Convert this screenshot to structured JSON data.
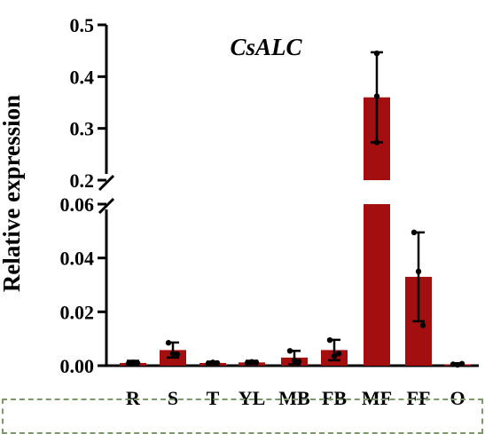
{
  "chart_data": {
    "type": "bar",
    "title": "CsALC",
    "ylabel": "Relative expression",
    "xlabel": "",
    "categories": [
      "R",
      "S",
      "T",
      "YL",
      "MB",
      "FB",
      "MF",
      "FF",
      "O"
    ],
    "values": [
      0.001,
      0.0058,
      0.001,
      0.0012,
      0.003,
      0.0058,
      0.36,
      0.033,
      0.0005
    ],
    "error": [
      0.0008,
      0.0028,
      0.0005,
      0.0006,
      0.0025,
      0.0038,
      0.087,
      0.0165,
      0.0004
    ],
    "points": [
      [
        0.0008,
        0.0012,
        0.001
      ],
      [
        0.0085,
        0.0045,
        0.0042
      ],
      [
        0.0008,
        0.0012,
        0.001
      ],
      [
        0.001,
        0.0014,
        0.0012
      ],
      [
        0.0055,
        0.002,
        0.0015
      ],
      [
        0.0095,
        0.0035,
        0.0045
      ],
      [
        0.445,
        0.362,
        0.273
      ],
      [
        0.0495,
        0.035,
        0.015
      ],
      [
        0.0005,
        0.0003,
        0.0007
      ]
    ],
    "ylim_lower": [
      0,
      0.06
    ],
    "ylim_upper": [
      0.2,
      0.5
    ],
    "yticks_lower": [
      "0.00",
      "0.02",
      "0.04",
      "0.06"
    ],
    "yticks_upper": [
      "0.2",
      "0.3",
      "0.4",
      "0.5"
    ],
    "axis_break": true,
    "bar_color": "#a30f0f",
    "grid": false,
    "legend": "none"
  }
}
